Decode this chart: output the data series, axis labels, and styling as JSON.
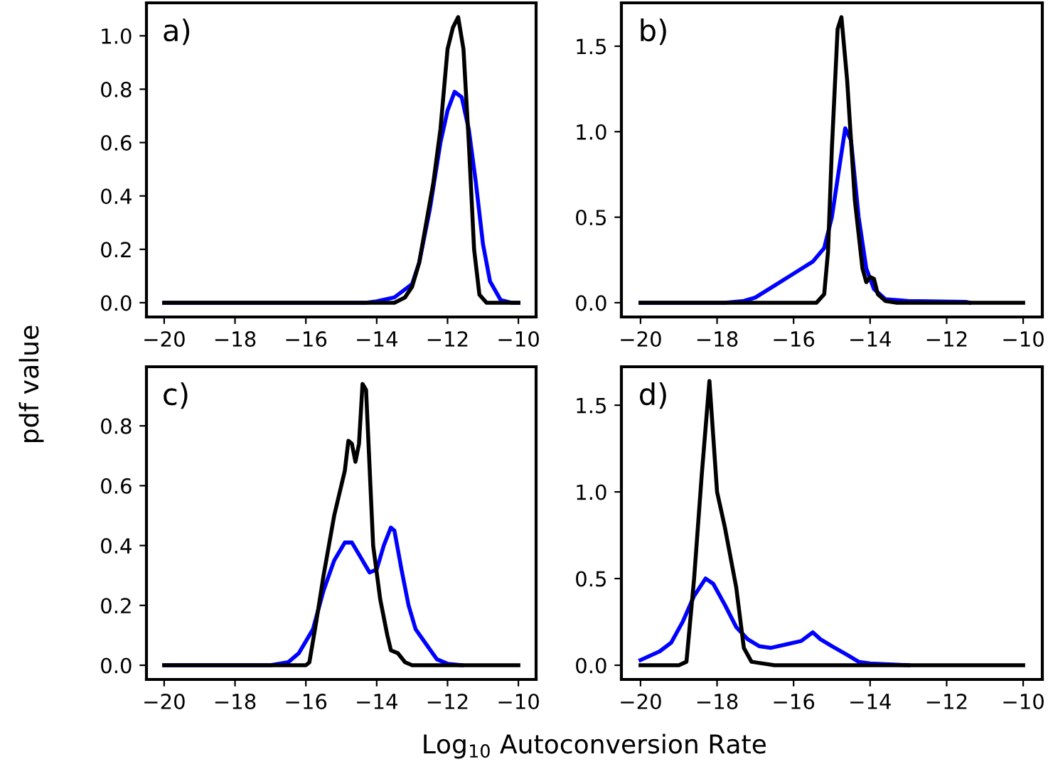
{
  "chart_data": [
    {
      "type": "line",
      "annotations": [
        "a)"
      ],
      "ylabel": "pdf value",
      "xlabel": "Log$_{10}$ Autoconversion Rate",
      "xlim": [
        -20.5,
        -9.5
      ],
      "ylim": [
        -0.0535,
        1.1235
      ],
      "xticks": [
        {
          "value": -20,
          "label": "−20"
        },
        {
          "value": -18,
          "label": "−18"
        },
        {
          "value": -16,
          "label": "−16"
        },
        {
          "value": -14,
          "label": "−14"
        },
        {
          "value": -12,
          "label": "−12"
        },
        {
          "value": -10,
          "label": "−10"
        }
      ],
      "yticks": [
        {
          "value": 0,
          "label": "0.0"
        },
        {
          "value": 0.2,
          "label": "0.2"
        },
        {
          "value": 0.4,
          "label": "0.4"
        },
        {
          "value": 0.6,
          "label": "0.6"
        },
        {
          "value": 0.8,
          "label": "0.8"
        },
        {
          "value": 1.0,
          "label": "1.0"
        }
      ],
      "series": [
        {
          "color": "#0000ff",
          "x": [
            -20,
            -14.3,
            -14,
            -13.5,
            -13,
            -12.8,
            -12.5,
            -12.2,
            -12.0,
            -11.8,
            -11.6,
            -11.4,
            -11.2,
            -11,
            -10.8,
            -10.5,
            -10.2,
            -10
          ],
          "values": [
            0,
            0,
            0.005,
            0.02,
            0.07,
            0.15,
            0.35,
            0.6,
            0.72,
            0.79,
            0.77,
            0.65,
            0.45,
            0.22,
            0.08,
            0.01,
            0,
            0
          ]
        },
        {
          "color": "#000000",
          "x": [
            -20,
            -13.5,
            -13.2,
            -13,
            -12.8,
            -12.6,
            -12.4,
            -12.2,
            -12.0,
            -11.85,
            -11.7,
            -11.55,
            -11.4,
            -11.25,
            -11.1,
            -10.9,
            -10
          ],
          "values": [
            0,
            0,
            0.02,
            0.06,
            0.15,
            0.3,
            0.45,
            0.65,
            0.95,
            1.03,
            1.07,
            0.95,
            0.6,
            0.2,
            0.03,
            0,
            0
          ]
        }
      ]
    },
    {
      "type": "line",
      "annotations": [
        "b)"
      ],
      "xlim": [
        -20.5,
        -9.5
      ],
      "ylim": [
        -0.0835,
        1.7535
      ],
      "xticks": [
        {
          "value": -20,
          "label": "−20"
        },
        {
          "value": -18,
          "label": "−18"
        },
        {
          "value": -16,
          "label": "−16"
        },
        {
          "value": -14,
          "label": "−14"
        },
        {
          "value": -12,
          "label": "−12"
        },
        {
          "value": -10,
          "label": "−10"
        }
      ],
      "yticks": [
        {
          "value": 0,
          "label": "0.0"
        },
        {
          "value": 0.5,
          "label": "0.5"
        },
        {
          "value": 1.0,
          "label": "1.0"
        },
        {
          "value": 1.5,
          "label": "1.5"
        }
      ],
      "series": [
        {
          "color": "#0000ff",
          "x": [
            -20,
            -17.8,
            -17.3,
            -17,
            -16.5,
            -16,
            -15.5,
            -15.2,
            -15.0,
            -14.8,
            -14.65,
            -14.5,
            -14.3,
            -14.1,
            -13.9,
            -13.6,
            -13,
            -11.5,
            -11.4
          ],
          "values": [
            0,
            0,
            0.01,
            0.03,
            0.1,
            0.17,
            0.24,
            0.32,
            0.5,
            0.8,
            1.02,
            0.95,
            0.5,
            0.2,
            0.08,
            0.02,
            0.01,
            0.005,
            0
          ]
        },
        {
          "color": "#000000",
          "x": [
            -20,
            -15.4,
            -15.2,
            -15.1,
            -15.0,
            -14.85,
            -14.75,
            -14.6,
            -14.4,
            -14.2,
            -14.1,
            -14.0,
            -13.9,
            -13.8,
            -13.6,
            -13.3,
            -10
          ],
          "values": [
            0,
            0,
            0.05,
            0.3,
            0.9,
            1.6,
            1.67,
            1.3,
            0.6,
            0.2,
            0.12,
            0.15,
            0.14,
            0.05,
            0.01,
            0,
            0
          ]
        }
      ]
    },
    {
      "type": "line",
      "annotations": [
        "c)"
      ],
      "xlim": [
        -20.5,
        -9.5
      ],
      "ylim": [
        -0.0475,
        0.9975
      ],
      "xticks": [
        {
          "value": -20,
          "label": "−20"
        },
        {
          "value": -18,
          "label": "−18"
        },
        {
          "value": -16,
          "label": "−16"
        },
        {
          "value": -14,
          "label": "−14"
        },
        {
          "value": -12,
          "label": "−12"
        },
        {
          "value": -10,
          "label": "−10"
        }
      ],
      "yticks": [
        {
          "value": 0,
          "label": "0.0"
        },
        {
          "value": 0.2,
          "label": "0.2"
        },
        {
          "value": 0.4,
          "label": "0.4"
        },
        {
          "value": 0.6,
          "label": "0.6"
        },
        {
          "value": 0.8,
          "label": "0.8"
        }
      ],
      "series": [
        {
          "color": "#0000ff",
          "x": [
            -20,
            -17,
            -16.5,
            -16.2,
            -15.8,
            -15.5,
            -15.2,
            -14.9,
            -14.7,
            -14.5,
            -14.2,
            -14.0,
            -13.8,
            -13.6,
            -13.5,
            -13.3,
            -13.1,
            -12.9,
            -12.6,
            -12.3,
            -12,
            -11.6
          ],
          "values": [
            0,
            0,
            0.01,
            0.04,
            0.12,
            0.25,
            0.35,
            0.41,
            0.41,
            0.37,
            0.31,
            0.32,
            0.4,
            0.46,
            0.45,
            0.32,
            0.2,
            0.12,
            0.07,
            0.02,
            0.005,
            0
          ]
        },
        {
          "color": "#000000",
          "x": [
            -20,
            -16,
            -15.9,
            -15.7,
            -15.5,
            -15.2,
            -14.9,
            -14.8,
            -14.7,
            -14.6,
            -14.5,
            -14.4,
            -14.3,
            -14.1,
            -13.9,
            -13.7,
            -13.6,
            -13.4,
            -13.2,
            -13.0,
            -10
          ],
          "values": [
            0,
            0,
            0.01,
            0.15,
            0.3,
            0.5,
            0.65,
            0.75,
            0.74,
            0.68,
            0.74,
            0.94,
            0.92,
            0.4,
            0.22,
            0.1,
            0.05,
            0.04,
            0.01,
            0,
            0
          ]
        }
      ]
    },
    {
      "type": "line",
      "annotations": [
        "d)"
      ],
      "xlim": [
        -20.5,
        -9.5
      ],
      "ylim": [
        -0.082,
        1.722
      ],
      "xticks": [
        {
          "value": -20,
          "label": "−20"
        },
        {
          "value": -18,
          "label": "−18"
        },
        {
          "value": -16,
          "label": "−16"
        },
        {
          "value": -14,
          "label": "−14"
        },
        {
          "value": -12,
          "label": "−12"
        },
        {
          "value": -10,
          "label": "−10"
        }
      ],
      "yticks": [
        {
          "value": 0,
          "label": "0.0"
        },
        {
          "value": 0.5,
          "label": "0.5"
        },
        {
          "value": 1.0,
          "label": "1.0"
        },
        {
          "value": 1.5,
          "label": "1.5"
        }
      ],
      "series": [
        {
          "color": "#0000ff",
          "x": [
            -20,
            -19.5,
            -19.2,
            -18.9,
            -18.6,
            -18.3,
            -18.1,
            -17.8,
            -17.5,
            -17.2,
            -16.9,
            -16.6,
            -16.2,
            -15.8,
            -15.5,
            -15.3,
            -15,
            -14.6,
            -14.3,
            -14,
            -13
          ],
          "values": [
            0.03,
            0.08,
            0.13,
            0.25,
            0.4,
            0.5,
            0.47,
            0.35,
            0.22,
            0.15,
            0.11,
            0.1,
            0.12,
            0.14,
            0.19,
            0.15,
            0.11,
            0.06,
            0.02,
            0.01,
            0
          ]
        },
        {
          "color": "#000000",
          "x": [
            -20,
            -19,
            -18.8,
            -18.6,
            -18.4,
            -18.2,
            -18.0,
            -17.8,
            -17.5,
            -17.3,
            -17.1,
            -16.5,
            -10
          ],
          "values": [
            0,
            0,
            0.02,
            0.5,
            1.1,
            1.64,
            1.0,
            0.8,
            0.45,
            0.1,
            0.02,
            0,
            0
          ]
        }
      ]
    }
  ]
}
